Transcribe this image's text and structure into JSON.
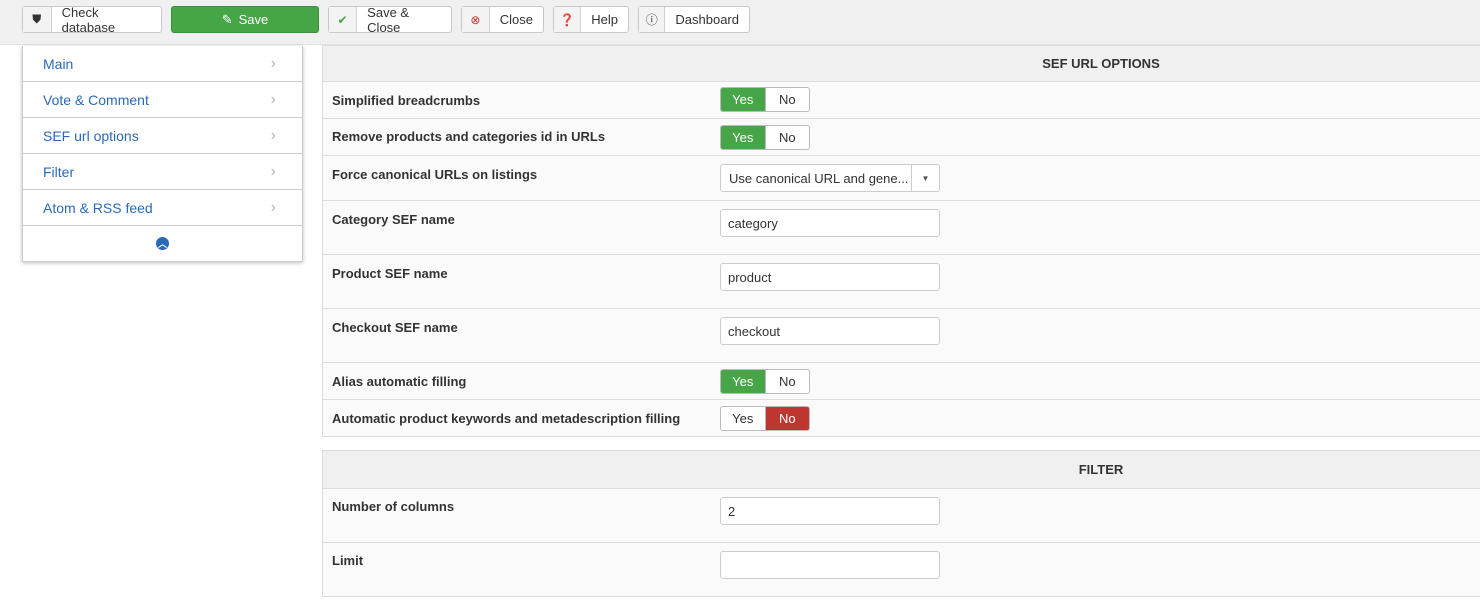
{
  "toolbar": {
    "check_database": "Check database",
    "save": "Save",
    "save_close": "Save & Close",
    "close": "Close",
    "help": "Help",
    "dashboard": "Dashboard"
  },
  "sidebar": {
    "items": [
      {
        "label": "Main"
      },
      {
        "label": "Vote & Comment"
      },
      {
        "label": "SEF url options"
      },
      {
        "label": "Filter"
      },
      {
        "label": "Atom & RSS feed"
      }
    ]
  },
  "sef": {
    "title": "SEF URL OPTIONS",
    "simplified_breadcrumbs": {
      "label": "Simplified breadcrumbs",
      "yes": "Yes",
      "no": "No",
      "value": "Yes"
    },
    "remove_ids": {
      "label": "Remove products and categories id in URLs",
      "yes": "Yes",
      "no": "No",
      "value": "Yes"
    },
    "force_canonical": {
      "label": "Force canonical URLs on listings",
      "value": "Use canonical URL and gene..."
    },
    "category_sef": {
      "label": "Category SEF name",
      "value": "category"
    },
    "product_sef": {
      "label": "Product SEF name",
      "value": "product"
    },
    "checkout_sef": {
      "label": "Checkout SEF name",
      "value": "checkout"
    },
    "alias_filling": {
      "label": "Alias automatic filling",
      "yes": "Yes",
      "no": "No",
      "value": "Yes"
    },
    "keywords_filling": {
      "label": "Automatic product keywords and metadescription filling",
      "yes": "Yes",
      "no": "No",
      "value": "No"
    }
  },
  "filter": {
    "title": "FILTER",
    "columns": {
      "label": "Number of columns",
      "value": "2"
    },
    "limit": {
      "label": "Limit",
      "value": ""
    }
  },
  "colors": {
    "yes": "#46a546",
    "no": "#bd362f",
    "link": "#2a69b8"
  }
}
